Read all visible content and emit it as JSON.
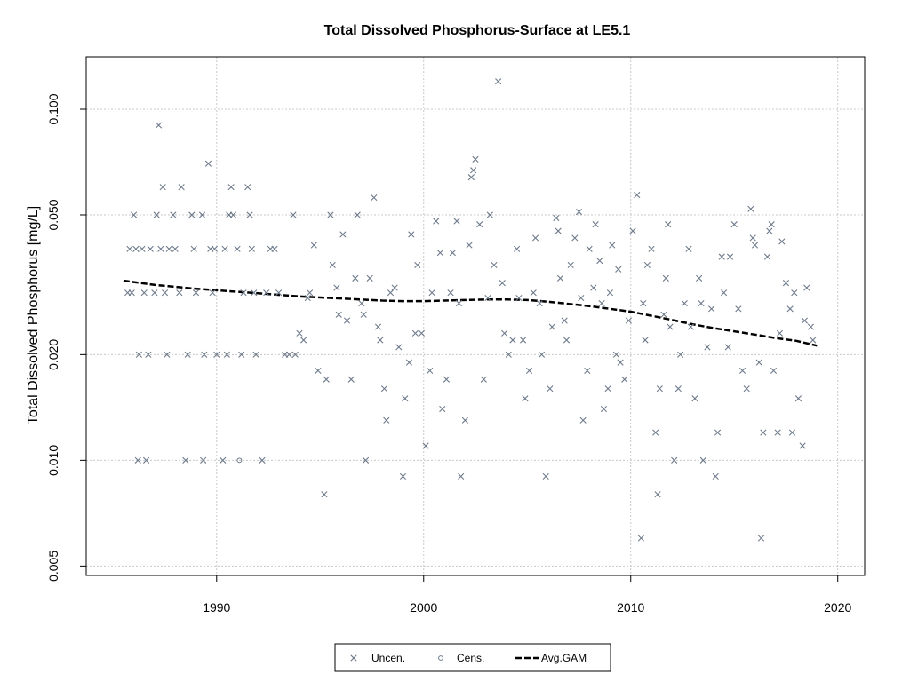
{
  "chart_data": {
    "type": "scatter",
    "title": "Total Dissolved Phosphorus-Surface at LE5.1",
    "xlabel": "",
    "ylabel": "Total Dissolved Phosphorus [mg/L]",
    "y_scale": "log",
    "xlim": [
      1983.7,
      2021.3
    ],
    "ylim": [
      0.0047,
      0.141
    ],
    "x_ticks": [
      1990,
      2000,
      2010,
      2020
    ],
    "x_tick_labels": [
      "1990",
      "2000",
      "2010",
      "2020"
    ],
    "y_ticks": [
      0.005,
      0.01,
      0.02,
      0.05,
      0.1
    ],
    "y_tick_labels": [
      "0.005",
      "0.010",
      "0.020",
      "0.050",
      "0.100"
    ],
    "grid": true,
    "legend_position": "bottom-center",
    "colors": {
      "points": "#6e7b8b",
      "gam": "#000000",
      "grid": "#c8c8c8"
    },
    "legend": [
      {
        "label": "Uncen.",
        "marker": "x"
      },
      {
        "label": "Cens.",
        "marker": "circle"
      },
      {
        "label": "Avg.GAM",
        "marker": "dashed-line"
      }
    ],
    "uncensored": [
      [
        1985.7,
        0.03
      ],
      [
        1985.8,
        0.04
      ],
      [
        1985.9,
        0.03
      ],
      [
        1986.0,
        0.05
      ],
      [
        1986.1,
        0.04
      ],
      [
        1986.2,
        0.01
      ],
      [
        1986.25,
        0.02
      ],
      [
        1986.4,
        0.04
      ],
      [
        1986.5,
        0.03
      ],
      [
        1986.6,
        0.01
      ],
      [
        1986.7,
        0.02
      ],
      [
        1986.8,
        0.04
      ],
      [
        1987.0,
        0.03
      ],
      [
        1987.1,
        0.05
      ],
      [
        1987.2,
        0.09
      ],
      [
        1987.3,
        0.04
      ],
      [
        1987.4,
        0.06
      ],
      [
        1987.5,
        0.03
      ],
      [
        1987.6,
        0.02
      ],
      [
        1987.7,
        0.04
      ],
      [
        1987.9,
        0.05
      ],
      [
        1988.0,
        0.04
      ],
      [
        1988.2,
        0.03
      ],
      [
        1988.3,
        0.06
      ],
      [
        1988.5,
        0.01
      ],
      [
        1988.6,
        0.02
      ],
      [
        1988.8,
        0.05
      ],
      [
        1988.9,
        0.04
      ],
      [
        1989.0,
        0.03
      ],
      [
        1989.3,
        0.05
      ],
      [
        1989.35,
        0.01
      ],
      [
        1989.4,
        0.02
      ],
      [
        1989.6,
        0.07
      ],
      [
        1989.7,
        0.04
      ],
      [
        1989.8,
        0.03
      ],
      [
        1989.9,
        0.04
      ],
      [
        1990.0,
        0.02
      ],
      [
        1990.3,
        0.01
      ],
      [
        1990.4,
        0.04
      ],
      [
        1990.5,
        0.02
      ],
      [
        1990.6,
        0.05
      ],
      [
        1990.7,
        0.06
      ],
      [
        1990.8,
        0.05
      ],
      [
        1991.0,
        0.04
      ],
      [
        1991.2,
        0.02
      ],
      [
        1991.3,
        0.03
      ],
      [
        1991.5,
        0.06
      ],
      [
        1991.6,
        0.05
      ],
      [
        1991.7,
        0.04
      ],
      [
        1991.8,
        0.03
      ],
      [
        1991.9,
        0.02
      ],
      [
        1992.2,
        0.01
      ],
      [
        1992.4,
        0.03
      ],
      [
        1992.6,
        0.04
      ],
      [
        1992.8,
        0.04
      ],
      [
        1993.0,
        0.03
      ],
      [
        1993.3,
        0.02
      ],
      [
        1993.5,
        0.02
      ],
      [
        1993.7,
        0.05
      ],
      [
        1993.8,
        0.02
      ],
      [
        1994.0,
        0.023
      ],
      [
        1994.2,
        0.022
      ],
      [
        1994.4,
        0.029
      ],
      [
        1994.5,
        0.03
      ],
      [
        1994.7,
        0.041
      ],
      [
        1994.9,
        0.018
      ],
      [
        1995.2,
        0.008
      ],
      [
        1995.3,
        0.017
      ],
      [
        1995.5,
        0.05
      ],
      [
        1995.6,
        0.036
      ],
      [
        1995.8,
        0.031
      ],
      [
        1995.9,
        0.026
      ],
      [
        1996.1,
        0.044
      ],
      [
        1996.3,
        0.025
      ],
      [
        1996.5,
        0.017
      ],
      [
        1996.7,
        0.033
      ],
      [
        1996.8,
        0.05
      ],
      [
        1997.0,
        0.028
      ],
      [
        1997.1,
        0.026
      ],
      [
        1997.2,
        0.01
      ],
      [
        1997.4,
        0.033
      ],
      [
        1997.6,
        0.056
      ],
      [
        1997.8,
        0.024
      ],
      [
        1997.9,
        0.022
      ],
      [
        1998.1,
        0.016
      ],
      [
        1998.2,
        0.013
      ],
      [
        1998.4,
        0.03
      ],
      [
        1998.6,
        0.031
      ],
      [
        1998.8,
        0.021
      ],
      [
        1999.0,
        0.009
      ],
      [
        1999.1,
        0.015
      ],
      [
        1999.3,
        0.019
      ],
      [
        1999.4,
        0.044
      ],
      [
        1999.6,
        0.023
      ],
      [
        1999.7,
        0.036
      ],
      [
        1999.9,
        0.023
      ],
      [
        2000.1,
        0.011
      ],
      [
        2000.3,
        0.018
      ],
      [
        2000.4,
        0.03
      ],
      [
        2000.6,
        0.048
      ],
      [
        2000.8,
        0.039
      ],
      [
        2000.9,
        0.014
      ],
      [
        2001.1,
        0.017
      ],
      [
        2001.3,
        0.03
      ],
      [
        2001.4,
        0.039
      ],
      [
        2001.6,
        0.048
      ],
      [
        2001.7,
        0.028
      ],
      [
        2001.8,
        0.009
      ],
      [
        2002.0,
        0.013
      ],
      [
        2002.2,
        0.041
      ],
      [
        2002.3,
        0.064
      ],
      [
        2002.4,
        0.067
      ],
      [
        2002.5,
        0.072
      ],
      [
        2002.7,
        0.047
      ],
      [
        2002.9,
        0.017
      ],
      [
        2003.1,
        0.029
      ],
      [
        2003.2,
        0.05
      ],
      [
        2003.4,
        0.036
      ],
      [
        2003.6,
        0.12
      ],
      [
        2003.8,
        0.032
      ],
      [
        2003.9,
        0.023
      ],
      [
        2004.1,
        0.02
      ],
      [
        2004.3,
        0.022
      ],
      [
        2004.5,
        0.04
      ],
      [
        2004.6,
        0.029
      ],
      [
        2004.8,
        0.022
      ],
      [
        2004.9,
        0.015
      ],
      [
        2005.1,
        0.018
      ],
      [
        2005.3,
        0.03
      ],
      [
        2005.4,
        0.043
      ],
      [
        2005.6,
        0.028
      ],
      [
        2005.7,
        0.02
      ],
      [
        2005.9,
        0.009
      ],
      [
        2006.1,
        0.016
      ],
      [
        2006.2,
        0.024
      ],
      [
        2006.4,
        0.049
      ],
      [
        2006.5,
        0.045
      ],
      [
        2006.6,
        0.033
      ],
      [
        2006.8,
        0.025
      ],
      [
        2006.9,
        0.022
      ],
      [
        2007.1,
        0.036
      ],
      [
        2007.3,
        0.043
      ],
      [
        2007.5,
        0.051
      ],
      [
        2007.6,
        0.029
      ],
      [
        2007.7,
        0.013
      ],
      [
        2007.9,
        0.018
      ],
      [
        2008.0,
        0.04
      ],
      [
        2008.2,
        0.031
      ],
      [
        2008.3,
        0.047
      ],
      [
        2008.5,
        0.037
      ],
      [
        2008.6,
        0.028
      ],
      [
        2008.7,
        0.014
      ],
      [
        2008.9,
        0.016
      ],
      [
        2009.0,
        0.03
      ],
      [
        2009.1,
        0.041
      ],
      [
        2009.3,
        0.02
      ],
      [
        2009.4,
        0.035
      ],
      [
        2009.5,
        0.019
      ],
      [
        2009.7,
        0.017
      ],
      [
        2009.9,
        0.025
      ],
      [
        2010.1,
        0.045
      ],
      [
        2010.3,
        0.057
      ],
      [
        2010.5,
        0.006
      ],
      [
        2010.6,
        0.028
      ],
      [
        2010.7,
        0.022
      ],
      [
        2010.8,
        0.036
      ],
      [
        2011.0,
        0.04
      ],
      [
        2011.2,
        0.012
      ],
      [
        2011.3,
        0.008
      ],
      [
        2011.4,
        0.016
      ],
      [
        2011.6,
        0.026
      ],
      [
        2011.7,
        0.033
      ],
      [
        2011.8,
        0.047
      ],
      [
        2011.9,
        0.024
      ],
      [
        2012.1,
        0.01
      ],
      [
        2012.3,
        0.016
      ],
      [
        2012.4,
        0.02
      ],
      [
        2012.6,
        0.028
      ],
      [
        2012.8,
        0.04
      ],
      [
        2012.9,
        0.024
      ],
      [
        2013.1,
        0.015
      ],
      [
        2013.3,
        0.033
      ],
      [
        2013.4,
        0.028
      ],
      [
        2013.5,
        0.01
      ],
      [
        2013.7,
        0.021
      ],
      [
        2013.9,
        0.027
      ],
      [
        2014.1,
        0.009
      ],
      [
        2014.2,
        0.012
      ],
      [
        2014.4,
        0.038
      ],
      [
        2014.5,
        0.03
      ],
      [
        2014.7,
        0.021
      ],
      [
        2014.8,
        0.038
      ],
      [
        2015.0,
        0.047
      ],
      [
        2015.2,
        0.027
      ],
      [
        2015.4,
        0.018
      ],
      [
        2015.6,
        0.016
      ],
      [
        2015.8,
        0.052
      ],
      [
        2015.9,
        0.043
      ],
      [
        2016.0,
        0.041
      ],
      [
        2016.2,
        0.019
      ],
      [
        2016.3,
        0.006
      ],
      [
        2016.4,
        0.012
      ],
      [
        2016.6,
        0.038
      ],
      [
        2016.7,
        0.045
      ],
      [
        2016.8,
        0.047
      ],
      [
        2016.9,
        0.018
      ],
      [
        2017.1,
        0.012
      ],
      [
        2017.2,
        0.023
      ],
      [
        2017.3,
        0.042
      ],
      [
        2017.5,
        0.032
      ],
      [
        2017.7,
        0.027
      ],
      [
        2017.8,
        0.012
      ],
      [
        2017.9,
        0.03
      ],
      [
        2018.1,
        0.015
      ],
      [
        2018.3,
        0.011
      ],
      [
        2018.4,
        0.025
      ],
      [
        2018.5,
        0.031
      ],
      [
        2018.7,
        0.024
      ],
      [
        2018.8,
        0.022
      ]
    ],
    "censored": [
      [
        1991.1,
        0.01
      ]
    ],
    "avg_gam": [
      [
        1985.5,
        0.0325
      ],
      [
        1986.0,
        0.0322
      ],
      [
        1987.0,
        0.0316
      ],
      [
        1988.0,
        0.0312
      ],
      [
        1989.0,
        0.0308
      ],
      [
        1990.0,
        0.0305
      ],
      [
        1991.0,
        0.0302
      ],
      [
        1992.0,
        0.0299
      ],
      [
        1993.0,
        0.0296
      ],
      [
        1994.0,
        0.0293
      ],
      [
        1995.0,
        0.0291
      ],
      [
        1996.0,
        0.0289
      ],
      [
        1997.0,
        0.0287
      ],
      [
        1998.0,
        0.0285
      ],
      [
        1999.0,
        0.0284
      ],
      [
        2000.0,
        0.0284
      ],
      [
        2001.0,
        0.0285
      ],
      [
        2002.0,
        0.0286
      ],
      [
        2003.0,
        0.0287
      ],
      [
        2004.0,
        0.0287
      ],
      [
        2005.0,
        0.0286
      ],
      [
        2006.0,
        0.0283
      ],
      [
        2007.0,
        0.0279
      ],
      [
        2008.0,
        0.0275
      ],
      [
        2009.0,
        0.027
      ],
      [
        2010.0,
        0.0265
      ],
      [
        2011.0,
        0.0258
      ],
      [
        2012.0,
        0.0251
      ],
      [
        2013.0,
        0.0244
      ],
      [
        2014.0,
        0.0238
      ],
      [
        2015.0,
        0.0233
      ],
      [
        2016.0,
        0.0228
      ],
      [
        2017.0,
        0.0223
      ],
      [
        2018.0,
        0.0219
      ],
      [
        2019.0,
        0.0212
      ]
    ]
  }
}
